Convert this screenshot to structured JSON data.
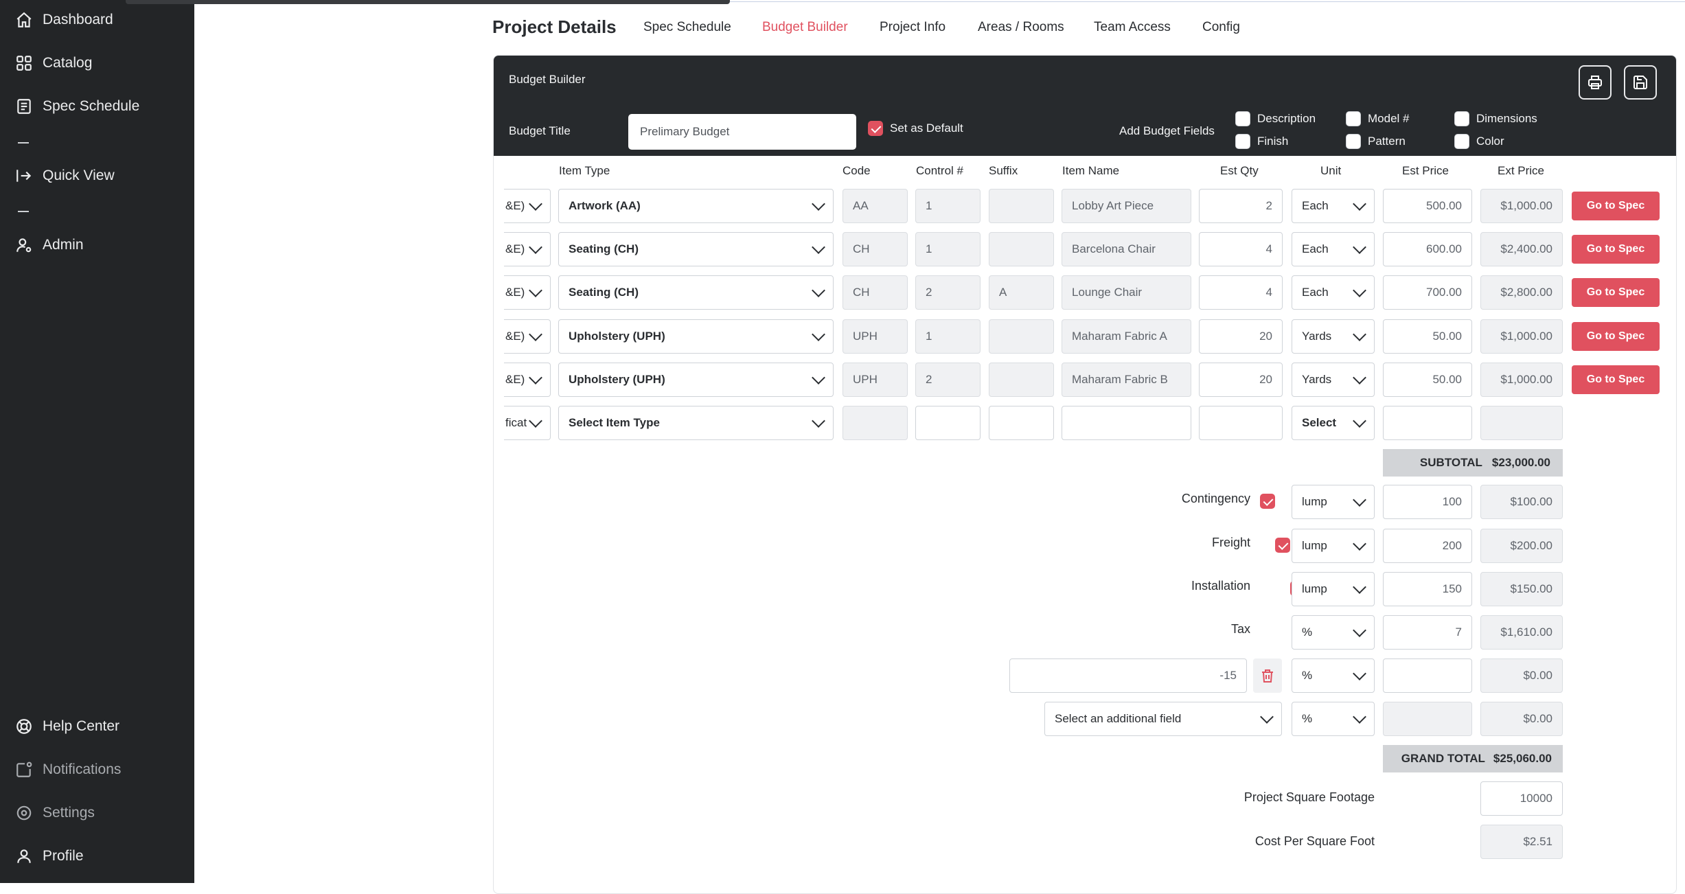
{
  "sidebar": {
    "items": [
      {
        "label": "Dashboard",
        "icon": "home-icon"
      },
      {
        "label": "Catalog",
        "icon": "grid-icon"
      },
      {
        "label": "Spec Schedule",
        "icon": "schedule-icon"
      },
      {
        "label": "Quick View",
        "icon": "sign-in-icon"
      },
      {
        "label": "Admin",
        "icon": "user-gear-icon"
      }
    ],
    "bottom_items": [
      {
        "label": "Help Center",
        "icon": "lifebuoy-icon"
      },
      {
        "label": "Notifications",
        "icon": "notification-icon"
      },
      {
        "label": "Settings",
        "icon": "gear-icon"
      },
      {
        "label": "Profile",
        "icon": "user-icon"
      }
    ]
  },
  "header": {
    "title": "Project Details",
    "tabs": [
      "Spec Schedule",
      "Budget Builder",
      "Project Info",
      "Areas / Rooms",
      "Team Access",
      "Config"
    ],
    "active_tab": "Budget Builder"
  },
  "card": {
    "title": "Budget Builder",
    "budget_title_label": "Budget Title",
    "budget_title_value": "Prelimary Budget",
    "set_default_label": "Set as Default",
    "set_default_checked": true,
    "add_fields_label": "Add Budget Fields",
    "fields": [
      {
        "label": "Description",
        "checked": false
      },
      {
        "label": "Model #",
        "checked": false
      },
      {
        "label": "Dimensions",
        "checked": false
      },
      {
        "label": "Finish",
        "checked": false
      },
      {
        "label": "Pattern",
        "checked": false
      },
      {
        "label": "Color",
        "checked": false
      }
    ]
  },
  "table": {
    "headers": [
      "Item Type",
      "Code",
      "Control #",
      "Suffix",
      "Item Name",
      "Est Qty",
      "Unit",
      "Est Price",
      "Ext Price"
    ],
    "rows": [
      {
        "cat": "&E)",
        "type": "Artwork (AA)",
        "code": "AA",
        "control": "1",
        "suffix": "",
        "name": "Lobby Art Piece",
        "qty": "2",
        "unit": "Each",
        "price": "500.00",
        "ext": "$1,000.00",
        "action": "Go to Spec"
      },
      {
        "cat": "&E)",
        "type": "Seating (CH)",
        "code": "CH",
        "control": "1",
        "suffix": "",
        "name": "Barcelona Chair",
        "qty": "4",
        "unit": "Each",
        "price": "600.00",
        "ext": "$2,400.00",
        "action": "Go to Spec"
      },
      {
        "cat": "&E)",
        "type": "Seating (CH)",
        "code": "CH",
        "control": "2",
        "suffix": "A",
        "name": "Lounge Chair",
        "qty": "4",
        "unit": "Each",
        "price": "700.00",
        "ext": "$2,800.00",
        "action": "Go to Spec"
      },
      {
        "cat": "&E)",
        "type": "Upholstery (UPH)",
        "code": "UPH",
        "control": "1",
        "suffix": "",
        "name": "Maharam Fabric A",
        "qty": "20",
        "unit": "Yards",
        "price": "50.00",
        "ext": "$1,000.00",
        "action": "Go to Spec"
      },
      {
        "cat": "&E)",
        "type": "Upholstery (UPH)",
        "code": "UPH",
        "control": "2",
        "suffix": "",
        "name": "Maharam Fabric B",
        "qty": "20",
        "unit": "Yards",
        "price": "50.00",
        "ext": "$1,000.00",
        "action": "Go to Spec"
      }
    ],
    "new_row": {
      "cat": "ficat",
      "type": "Select Item Type",
      "unit": "Select"
    }
  },
  "subtotal": {
    "label": "SUBTOTAL",
    "value": "$23,000.00"
  },
  "fees": [
    {
      "label": "Contingency",
      "checked": true,
      "unit": "lump",
      "amount": "100",
      "ext": "$100.00"
    },
    {
      "label": "Freight",
      "checked": true,
      "unit": "lump",
      "amount": "200",
      "ext": "$200.00"
    },
    {
      "label": "Installation",
      "checked": true,
      "unit": "lump",
      "amount": "150",
      "ext": "$150.00"
    },
    {
      "label": "Tax",
      "checked": true,
      "unit": "%",
      "amount": "7",
      "ext": "$1,610.00"
    }
  ],
  "custom_fee": {
    "value": "-15",
    "unit": "%",
    "amount": "",
    "ext": "$0.00"
  },
  "additional_fee": {
    "placeholder": "Select an additional field",
    "unit": "%",
    "amount": "",
    "ext": "$0.00"
  },
  "grand_total": {
    "label": "GRAND TOTAL",
    "value": "$25,060.00"
  },
  "square_footage": {
    "label": "Project Square Footage",
    "value": "10000"
  },
  "cost_per_sqft": {
    "label": "Cost Per Square Foot",
    "value": "$2.51"
  },
  "colors": {
    "accent": "#e0515f",
    "sidebar_bg": "#232527",
    "card_header_bg": "#272a2d"
  }
}
